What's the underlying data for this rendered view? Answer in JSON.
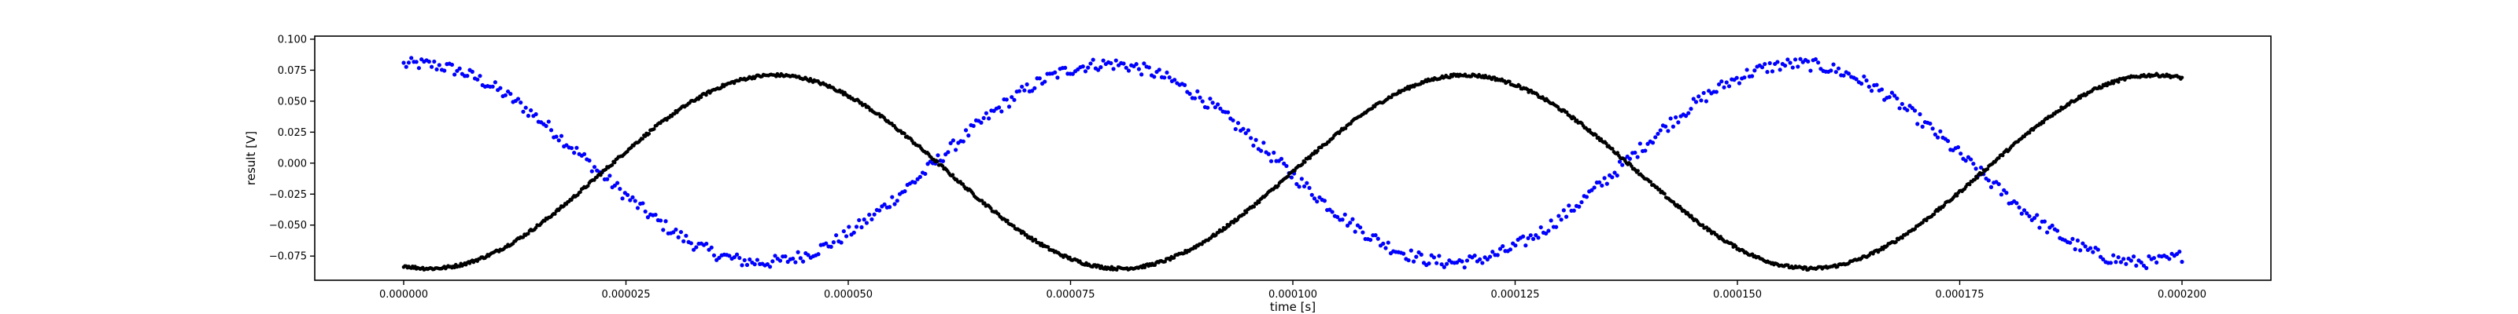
{
  "chart_data": {
    "type": "scatter",
    "title": "",
    "xlabel": "time [s]",
    "ylabel": "result [V]",
    "xlim": [
      -1e-05,
      0.00021
    ],
    "ylim": [
      -0.0945,
      0.1025
    ],
    "grid": false,
    "legend": "none",
    "x_ticks": [
      0.0,
      2.5e-05,
      5e-05,
      7.5e-05,
      0.0001,
      0.000125,
      0.00015,
      0.000175,
      0.0002
    ],
    "x_tick_labels": [
      "0.000000",
      "0.000025",
      "0.000050",
      "0.000075",
      "0.000100",
      "0.000125",
      "0.000150",
      "0.000175",
      "0.000200"
    ],
    "y_ticks": [
      -0.075,
      -0.05,
      -0.025,
      0.0,
      0.025,
      0.05,
      0.075,
      0.1
    ],
    "y_tick_labels": [
      "−0.075",
      "−0.050",
      "−0.025",
      "0.000",
      "0.025",
      "0.050",
      "0.075",
      "0.100"
    ],
    "series": [
      {
        "color": "#0000ff",
        "marker": "dot",
        "line": "none",
        "x_range": [
          0.0,
          0.0002
        ],
        "samples": 700,
        "amplitude": 0.08,
        "period": 7.76e-05,
        "phase_peak_time": 1.5e-06,
        "noise_spread": 0.005,
        "values_at_ticks": [
          {
            "x": 0.0,
            "y": 0.085
          },
          {
            "x": 2.5e-05,
            "y": -0.016
          },
          {
            "x": 4e-05,
            "y": -0.074
          },
          {
            "x": 5e-05,
            "y": -0.058
          },
          {
            "x": 6e-05,
            "y": 0.008
          },
          {
            "x": 7.9e-05,
            "y": 0.085
          },
          {
            "x": 0.0001,
            "y": 0.0
          },
          {
            "x": 0.000118,
            "y": -0.074
          },
          {
            "x": 0.000137,
            "y": 0.008
          },
          {
            "x": 0.000157,
            "y": 0.085
          },
          {
            "x": 0.000175,
            "y": 0.0
          },
          {
            "x": 0.000195,
            "y": -0.074
          }
        ]
      },
      {
        "color": "#000000",
        "marker": "dot",
        "line": "none",
        "x_range": [
          0.0,
          0.0002
        ],
        "samples": 1400,
        "amplitude": 0.078,
        "offset": -0.007,
        "period": 7.76e-05,
        "phase_peak_time": 4.18e-05,
        "noise_spread": 0.0012,
        "values_at_ticks": [
          {
            "x": 0.0,
            "y": -0.081
          },
          {
            "x": 4e-06,
            "y": -0.085
          },
          {
            "x": 2.3e-05,
            "y": -0.01
          },
          {
            "x": 4.2e-05,
            "y": 0.071
          },
          {
            "x": 6e-05,
            "y": 0.01
          },
          {
            "x": 8.1e-05,
            "y": -0.085
          },
          {
            "x": 0.0001,
            "y": -0.01
          },
          {
            "x": 0.000119,
            "y": 0.071
          },
          {
            "x": 0.000138,
            "y": -0.01
          },
          {
            "x": 0.000158,
            "y": -0.085
          },
          {
            "x": 0.000177,
            "y": -0.01
          },
          {
            "x": 0.000196,
            "y": 0.071
          },
          {
            "x": 0.0002,
            "y": 0.069
          }
        ]
      }
    ]
  }
}
